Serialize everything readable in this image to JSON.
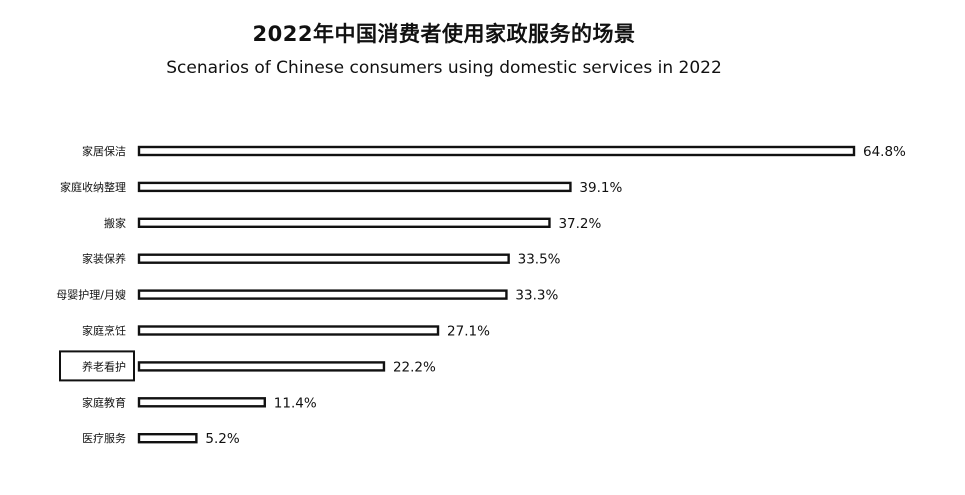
{
  "chart_data": {
    "type": "bar",
    "orientation": "horizontal",
    "title": "2022年中国消费者使用家政服务的场景",
    "subtitle": "Scenarios of Chinese consumers using domestic services in 2022",
    "categories": [
      "家居保洁",
      "家庭收纳整理",
      "搬家",
      "家装保养",
      "母婴护理/月嫂",
      "家庭烹饪",
      "养老看护",
      "家庭教育",
      "医疗服务"
    ],
    "values": [
      64.8,
      39.1,
      37.2,
      33.5,
      33.3,
      27.1,
      22.2,
      11.4,
      5.2
    ],
    "value_labels": [
      "64.8%",
      "39.1%",
      "37.2%",
      "33.5%",
      "33.3%",
      "27.1%",
      "22.2%",
      "11.4%",
      "5.2%"
    ],
    "highlighted_category": "养老看护",
    "xlim": [
      0,
      64.8
    ],
    "grid": false,
    "legend": "none",
    "colors": {
      "bar_fill": "#ffffff",
      "bar_stroke": "#111111",
      "text": "#111111"
    }
  }
}
